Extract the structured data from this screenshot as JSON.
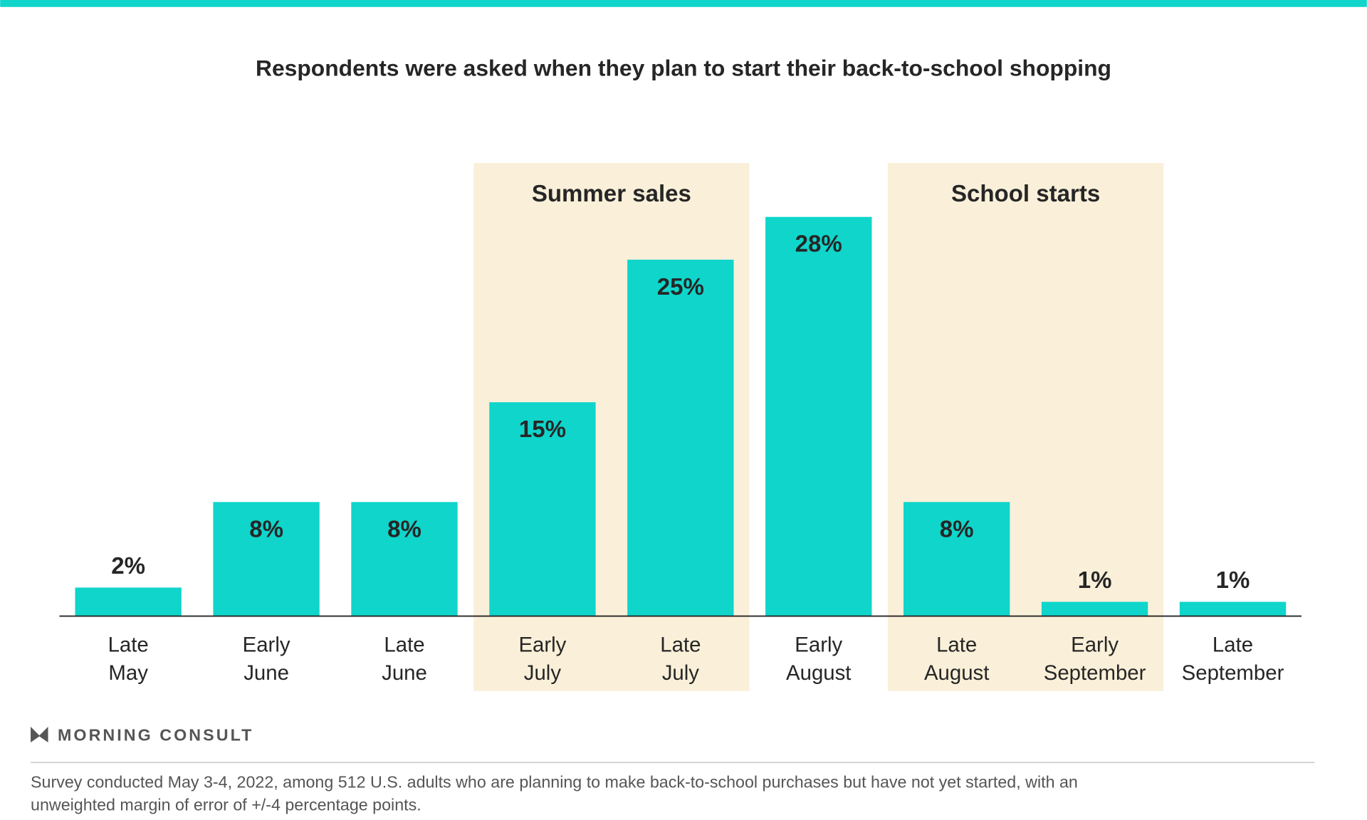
{
  "chart_data": {
    "type": "bar",
    "title": "Respondents were asked when they plan to start their back-to-school shopping",
    "categories": [
      [
        "Late",
        "May"
      ],
      [
        "Early",
        "June"
      ],
      [
        "Late",
        "June"
      ],
      [
        "Early",
        "July"
      ],
      [
        "Late",
        "July"
      ],
      [
        "Early",
        "August"
      ],
      [
        "Late",
        "August"
      ],
      [
        "Early",
        "September"
      ],
      [
        "Late",
        "September"
      ]
    ],
    "values": [
      2,
      8,
      8,
      15,
      25,
      28,
      8,
      1,
      1
    ],
    "value_labels": [
      "2%",
      "8%",
      "8%",
      "15%",
      "25%",
      "28%",
      "8%",
      "1%",
      "1%"
    ],
    "unit": "%",
    "ylim": [
      0,
      30
    ],
    "grid": false,
    "highlight_bands": [
      {
        "label": "Summer sales",
        "from_index": 3,
        "to_index": 4
      },
      {
        "label": "School starts",
        "from_index": 6,
        "to_index": 7
      }
    ],
    "colors": {
      "bar": "#0fd5cb",
      "band": "#faf0d9",
      "accent_bar": "#0fd5cb",
      "text": "#262626"
    }
  },
  "branding": {
    "logo_text": "MORNING CONSULT",
    "logo_icon": "morning-consult-m-icon"
  },
  "footnote": [
    "Survey conducted May 3-4, 2022, among 512 U.S. adults who are planning to make back-to-school purchases but have not yet started, with an",
    "unweighted margin of error of +/-4 percentage points."
  ]
}
